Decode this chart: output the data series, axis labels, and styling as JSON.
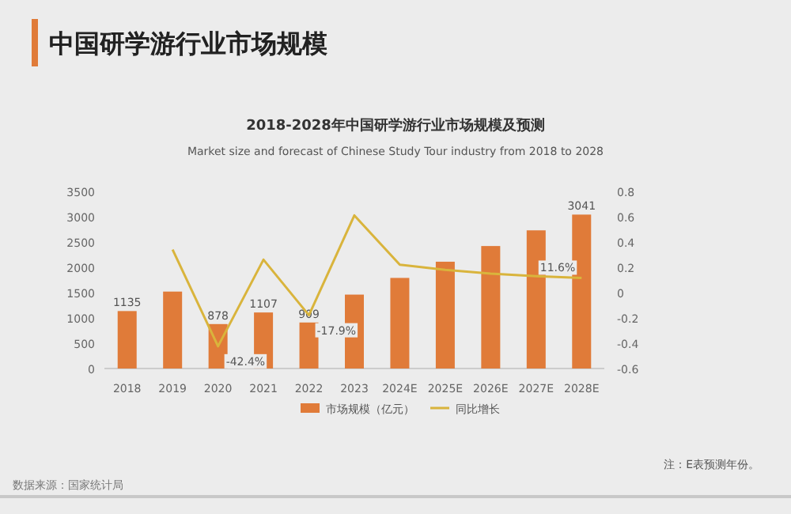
{
  "chart_data": {
    "type": "bar",
    "title": "中国研学游行业市场规模",
    "subtitle": "2018-2028年中国研学游行业市场规模及预测",
    "annotations": [
      "Market size and forecast of Chinese Study Tour industry from 2018 to 2028",
      "注：E表预测年份。",
      "数据来源：国家统计局"
    ],
    "categories": [
      "2018",
      "2019",
      "2020",
      "2021",
      "2022",
      "2023",
      "2024E",
      "2025E",
      "2026E",
      "2027E",
      "2028E"
    ],
    "series": [
      {
        "name": "市场规模（亿元）",
        "color": "#e07b39",
        "values": [
          1135,
          1520,
          878,
          1107,
          909,
          1460,
          1790,
          2110,
          2420,
          2730,
          3041
        ],
        "value_labels": [
          "1135",
          null,
          "878",
          "1107",
          "909",
          null,
          null,
          null,
          null,
          null,
          "3041"
        ]
      },
      {
        "name": "同比增长",
        "type": "line",
        "axis": "y2",
        "color": "#d9b43c",
        "values": [
          null,
          0.34,
          -0.424,
          0.26,
          -0.179,
          0.61,
          0.22,
          0.18,
          0.15,
          0.13,
          0.116
        ],
        "value_labels": [
          null,
          null,
          "-42.4%",
          null,
          "-17.9%",
          null,
          null,
          null,
          null,
          null,
          "11.6%"
        ]
      }
    ],
    "ylim": [
      0,
      3500
    ],
    "yticks": [
      0,
      500,
      1000,
      1500,
      2000,
      2500,
      3000,
      3500
    ],
    "y2lim": [
      -0.6,
      0.8
    ],
    "y2ticks": [
      -0.6,
      -0.4,
      -0.2,
      0,
      0.2,
      0.4,
      0.6,
      0.8
    ],
    "legend": "bottom",
    "grid": false
  }
}
